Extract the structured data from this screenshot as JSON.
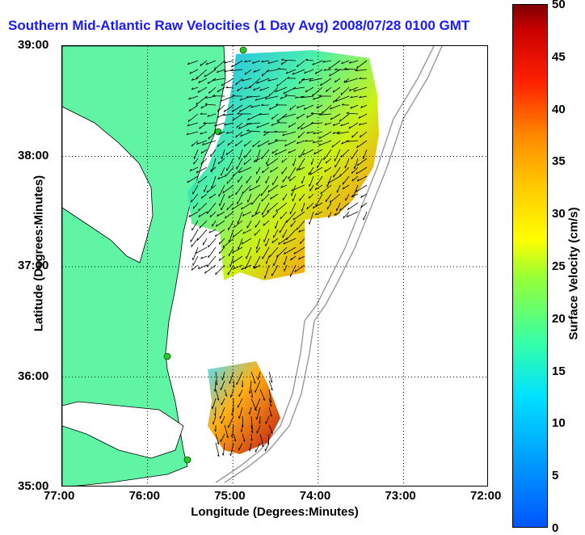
{
  "title": "Southern Mid-Atlantic Raw Velocities (1 Day Avg) 2008/07/28 0100 GMT",
  "chart_data": {
    "type": "map",
    "xlabel": "Longitude (Degrees:Minutes)",
    "ylabel": "Latitude (Degrees:Minutes)",
    "x_ticks": [
      "77:00",
      "76:00",
      "75:00",
      "74:00",
      "73:00",
      "72:00"
    ],
    "y_ticks": [
      "39:00",
      "38:00",
      "37:00",
      "36:00",
      "35:00"
    ],
    "xlim": [
      -77,
      -72
    ],
    "ylim": [
      35,
      39
    ],
    "grid": "dotted",
    "colorbar": {
      "label": "Surface Velocity (cm/s)",
      "ticks": [
        "50",
        "45",
        "40",
        "35",
        "30",
        "25",
        "20",
        "15",
        "10",
        "5",
        "0"
      ],
      "range": [
        0,
        50
      ]
    }
  },
  "colors": {
    "land": "#5ff5a5",
    "title": "#1a1aff",
    "station": "#22cc22"
  }
}
